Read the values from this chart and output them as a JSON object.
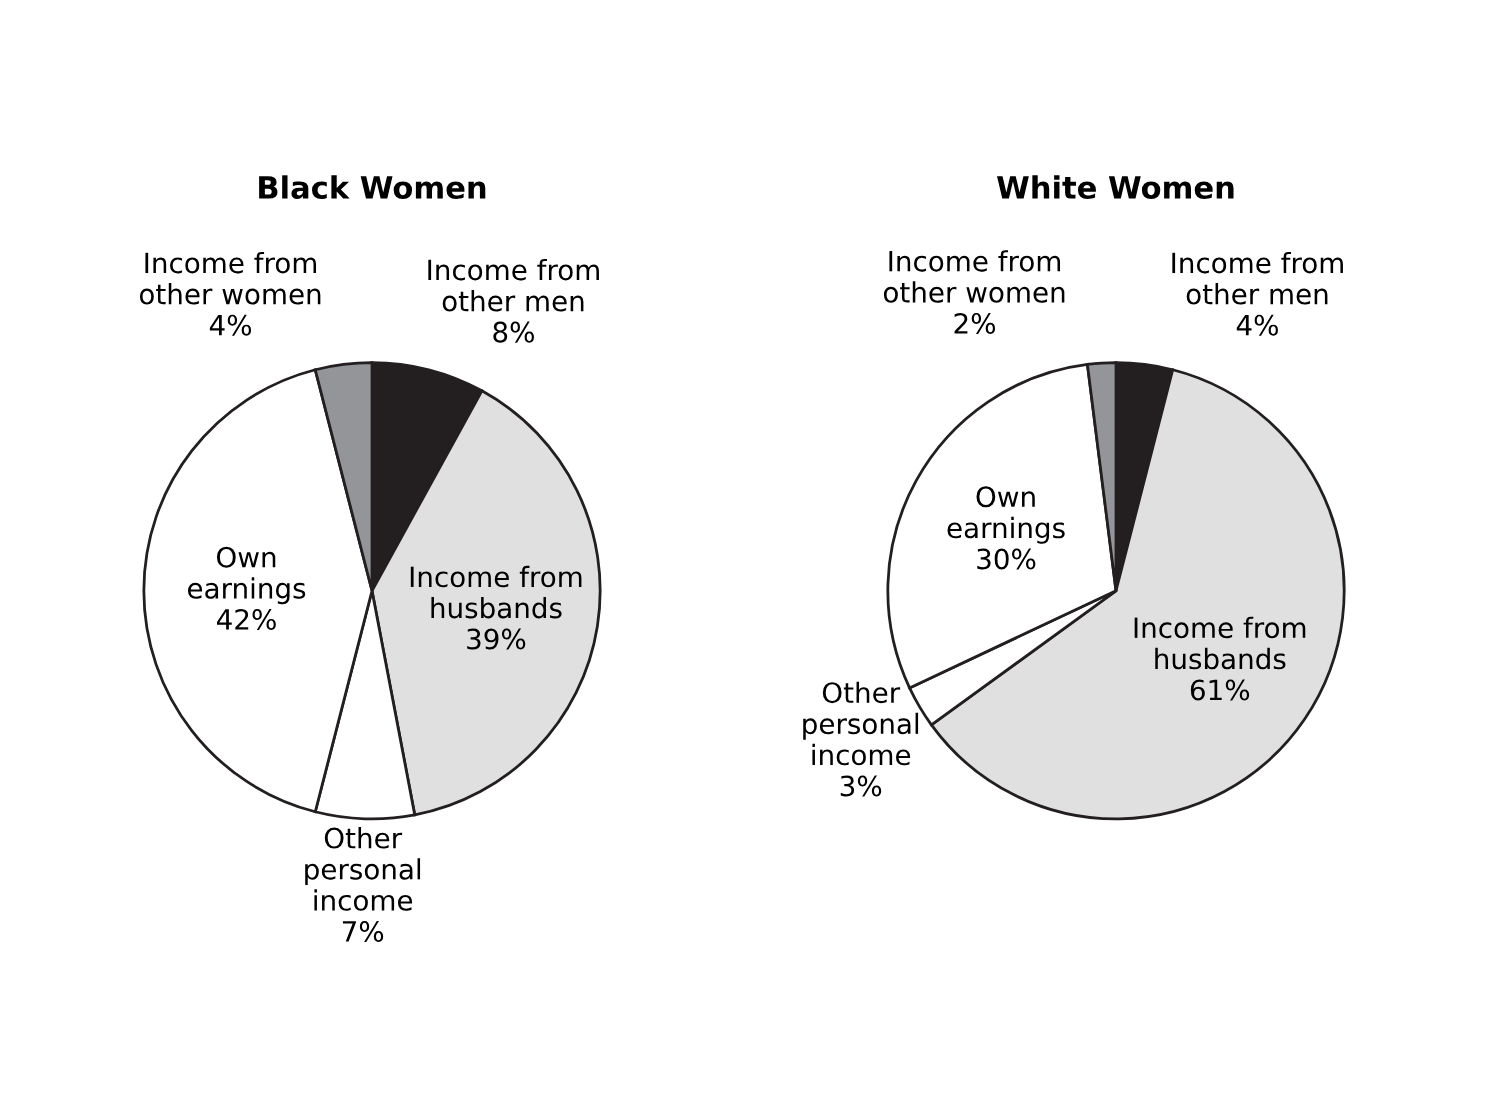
{
  "chart_data": [
    {
      "type": "pie",
      "title": "Black Women",
      "categories": [
        "Income from\nother men",
        "Income from\nhusbands",
        "Other\npersonal\nincome",
        "Own\nearnings",
        "Income from\nother women"
      ],
      "values": [
        8,
        39,
        7,
        42,
        4
      ],
      "value_labels": [
        "8%",
        "39%",
        "7%",
        "42%",
        "4%"
      ],
      "colors": [
        "#231f20",
        "#e0e0e0",
        "#ffffff",
        "#ffffff",
        "#939598"
      ]
    },
    {
      "type": "pie",
      "title": "White Women",
      "categories": [
        "Income from\nother men",
        "Income from\nhusbands",
        "Other\npersonal\nincome",
        "Own\nearnings",
        "Income from\nother women"
      ],
      "values": [
        4,
        61,
        3,
        30,
        2
      ],
      "value_labels": [
        "4%",
        "61%",
        "3%",
        "30%",
        "2%"
      ],
      "colors": [
        "#231f20",
        "#e0e0e0",
        "#ffffff",
        "#ffffff",
        "#939598"
      ]
    }
  ]
}
